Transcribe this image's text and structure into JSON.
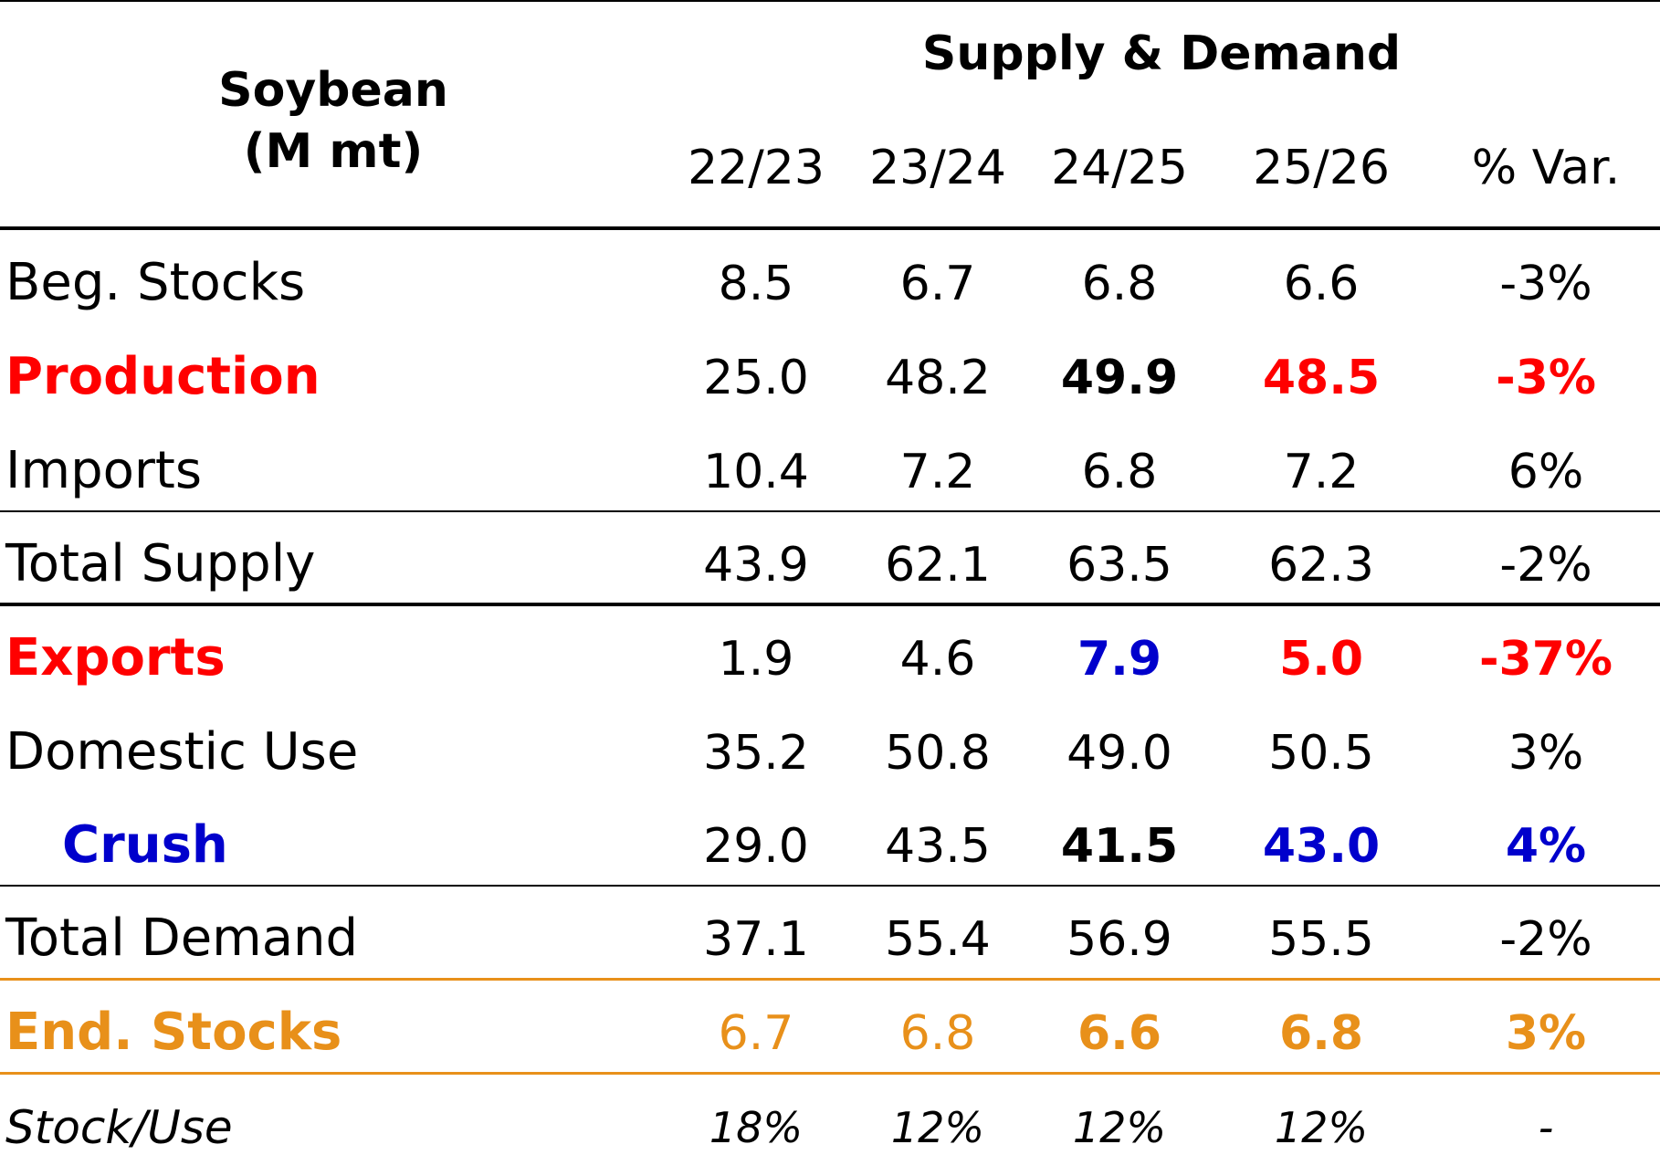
{
  "header": {
    "title_line1": "Soybean",
    "title_line2": "(M mt)",
    "group_title": "Supply & Demand",
    "columns": [
      "22/23",
      "23/24",
      "24/25",
      "25/26",
      "% Var."
    ]
  },
  "colors": {
    "red": "#ff0000",
    "blue": "#0000cc",
    "orange": "#e8901a",
    "black": "#000000"
  },
  "rows": [
    {
      "label": "Beg. Stocks",
      "values": [
        "8.5",
        "6.7",
        "6.8",
        "6.6",
        "-3%"
      ]
    },
    {
      "label": "Production",
      "values": [
        "25.0",
        "48.2",
        "49.9",
        "48.5",
        "-3%"
      ]
    },
    {
      "label": "Imports",
      "values": [
        "10.4",
        "7.2",
        "6.8",
        "7.2",
        "6%"
      ]
    },
    {
      "label": "Total Supply",
      "values": [
        "43.9",
        "62.1",
        "63.5",
        "62.3",
        "-2%"
      ]
    },
    {
      "label": "Exports",
      "values": [
        "1.9",
        "4.6",
        "7.9",
        "5.0",
        "-37%"
      ]
    },
    {
      "label": "Domestic Use",
      "values": [
        "35.2",
        "50.8",
        "49.0",
        "50.5",
        "3%"
      ]
    },
    {
      "label": "Crush",
      "values": [
        "29.0",
        "43.5",
        "41.5",
        "43.0",
        "4%"
      ]
    },
    {
      "label": "Total Demand",
      "values": [
        "37.1",
        "55.4",
        "56.9",
        "55.5",
        "-2%"
      ]
    },
    {
      "label": "End. Stocks",
      "values": [
        "6.7",
        "6.8",
        "6.6",
        "6.8",
        "3%"
      ]
    },
    {
      "label": "Stock/Use",
      "values": [
        "18%",
        "12%",
        "12%",
        "12%",
        "-"
      ]
    }
  ]
}
